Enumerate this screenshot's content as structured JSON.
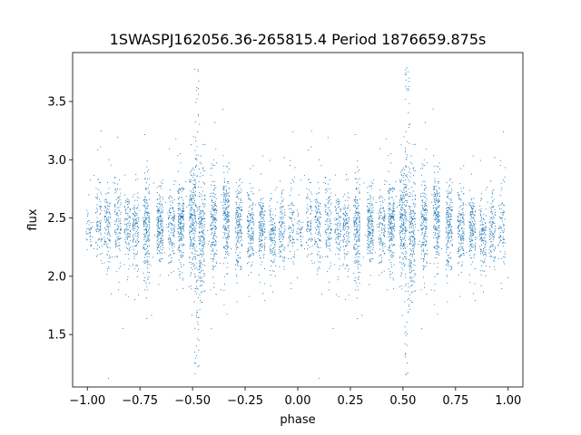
{
  "chart_data": {
    "type": "scatter",
    "title": "1SWASPJ162056.36-265815.4 Period 1876659.875s",
    "xlabel": "phase",
    "ylabel": "flux",
    "xlim": [
      -1.07,
      1.07
    ],
    "ylim": [
      1.05,
      3.92
    ],
    "x_ticks": [
      -1.0,
      -0.75,
      -0.5,
      -0.25,
      0.0,
      0.25,
      0.5,
      0.75,
      1.0
    ],
    "x_tick_labels": [
      "−1.00",
      "−0.75",
      "−0.50",
      "−0.25",
      "0.00",
      "0.25",
      "0.50",
      "0.75",
      "1.00"
    ],
    "y_ticks": [
      1.5,
      2.0,
      2.5,
      3.0,
      3.5
    ],
    "y_tick_labels": [
      "1.5",
      "2.0",
      "2.5",
      "3.0",
      "3.5"
    ],
    "grid": false,
    "marker_color": "#1f77b4",
    "summary": {
      "baseline_flux": 2.43,
      "typical_scatter": 0.17,
      "min_flux": 1.17,
      "max_flux": 3.8,
      "phase_range": [
        -1.0,
        1.0
      ],
      "folding": "points at phase p are repeated at p+1 (two identical cycles)"
    },
    "observation_clusters": [
      {
        "phase": -0.99,
        "mean": 2.42,
        "spread": 0.1,
        "n": 40
      },
      {
        "phase": -0.945,
        "mean": 2.45,
        "spread": 0.15,
        "n": 80
      },
      {
        "phase": -0.905,
        "mean": 2.43,
        "spread": 0.15,
        "n": 110
      },
      {
        "phase": -0.855,
        "mean": 2.45,
        "spread": 0.17,
        "n": 110
      },
      {
        "phase": -0.81,
        "mean": 2.42,
        "spread": 0.15,
        "n": 100
      },
      {
        "phase": -0.77,
        "mean": 2.4,
        "spread": 0.17,
        "n": 120
      },
      {
        "phase": -0.72,
        "mean": 2.38,
        "spread": 0.22,
        "n": 200
      },
      {
        "phase": -0.655,
        "mean": 2.42,
        "spread": 0.17,
        "n": 180
      },
      {
        "phase": -0.6,
        "mean": 2.4,
        "spread": 0.17,
        "n": 120
      },
      {
        "phase": -0.555,
        "mean": 2.45,
        "spread": 0.18,
        "n": 200
      },
      {
        "phase": -0.5,
        "mean": 2.45,
        "spread": 0.25,
        "n": 220
      },
      {
        "phase": -0.455,
        "mean": 2.38,
        "spread": 0.3,
        "n": 200
      },
      {
        "phase": -0.4,
        "mean": 2.45,
        "spread": 0.2,
        "n": 180
      },
      {
        "phase": -0.34,
        "mean": 2.5,
        "spread": 0.18,
        "n": 200
      },
      {
        "phase": -0.28,
        "mean": 2.45,
        "spread": 0.18,
        "n": 180
      },
      {
        "phase": -0.225,
        "mean": 2.42,
        "spread": 0.16,
        "n": 150
      },
      {
        "phase": -0.17,
        "mean": 2.4,
        "spread": 0.15,
        "n": 150
      },
      {
        "phase": -0.12,
        "mean": 2.35,
        "spread": 0.15,
        "n": 120
      },
      {
        "phase": -0.075,
        "mean": 2.4,
        "spread": 0.15,
        "n": 100
      },
      {
        "phase": -0.03,
        "mean": 2.45,
        "spread": 0.2,
        "n": 80
      }
    ],
    "spike_columns": [
      {
        "phase": -0.48,
        "low": 1.15,
        "high": 3.8
      },
      {
        "phase": 0.52,
        "low": 1.15,
        "high": 3.8
      }
    ]
  }
}
